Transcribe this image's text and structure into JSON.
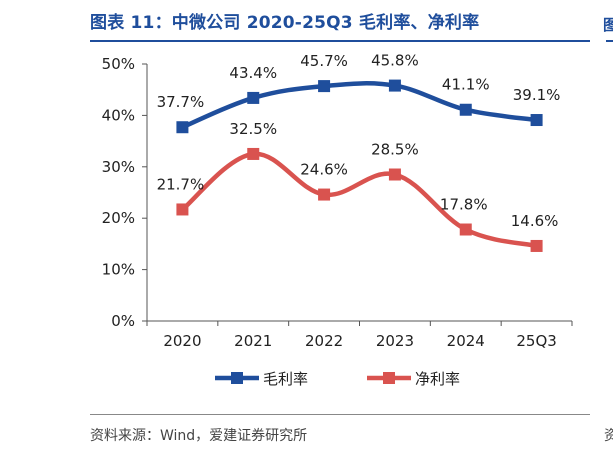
{
  "figure": {
    "title": "图表 11：中微公司 2020-25Q3 毛利率、净利率",
    "source": "资料来源：Wind，爱建证券研究所",
    "side_fragment_top": "图",
    "side_fragment_bottom": "资"
  },
  "chart_data": {
    "type": "line",
    "categories": [
      "2020",
      "2021",
      "2022",
      "2023",
      "2024",
      "25Q3"
    ],
    "y_ticks": [
      "0%",
      "10%",
      "20%",
      "30%",
      "40%",
      "50%"
    ],
    "ylim": [
      0,
      50
    ],
    "grid": false,
    "legend_position": "bottom",
    "series": [
      {
        "name": "毛利率",
        "values": [
          37.7,
          43.4,
          45.7,
          45.8,
          41.1,
          39.1
        ],
        "labels": [
          "37.7%",
          "43.4%",
          "45.7%",
          "45.8%",
          "41.1%",
          "39.1%"
        ],
        "color": "#1f4e9c"
      },
      {
        "name": "净利率",
        "values": [
          21.7,
          32.5,
          24.6,
          28.5,
          17.8,
          14.6
        ],
        "labels": [
          "21.7%",
          "32.5%",
          "24.6%",
          "28.5%",
          "17.8%",
          "14.6%"
        ],
        "color": "#d9534f"
      }
    ]
  }
}
